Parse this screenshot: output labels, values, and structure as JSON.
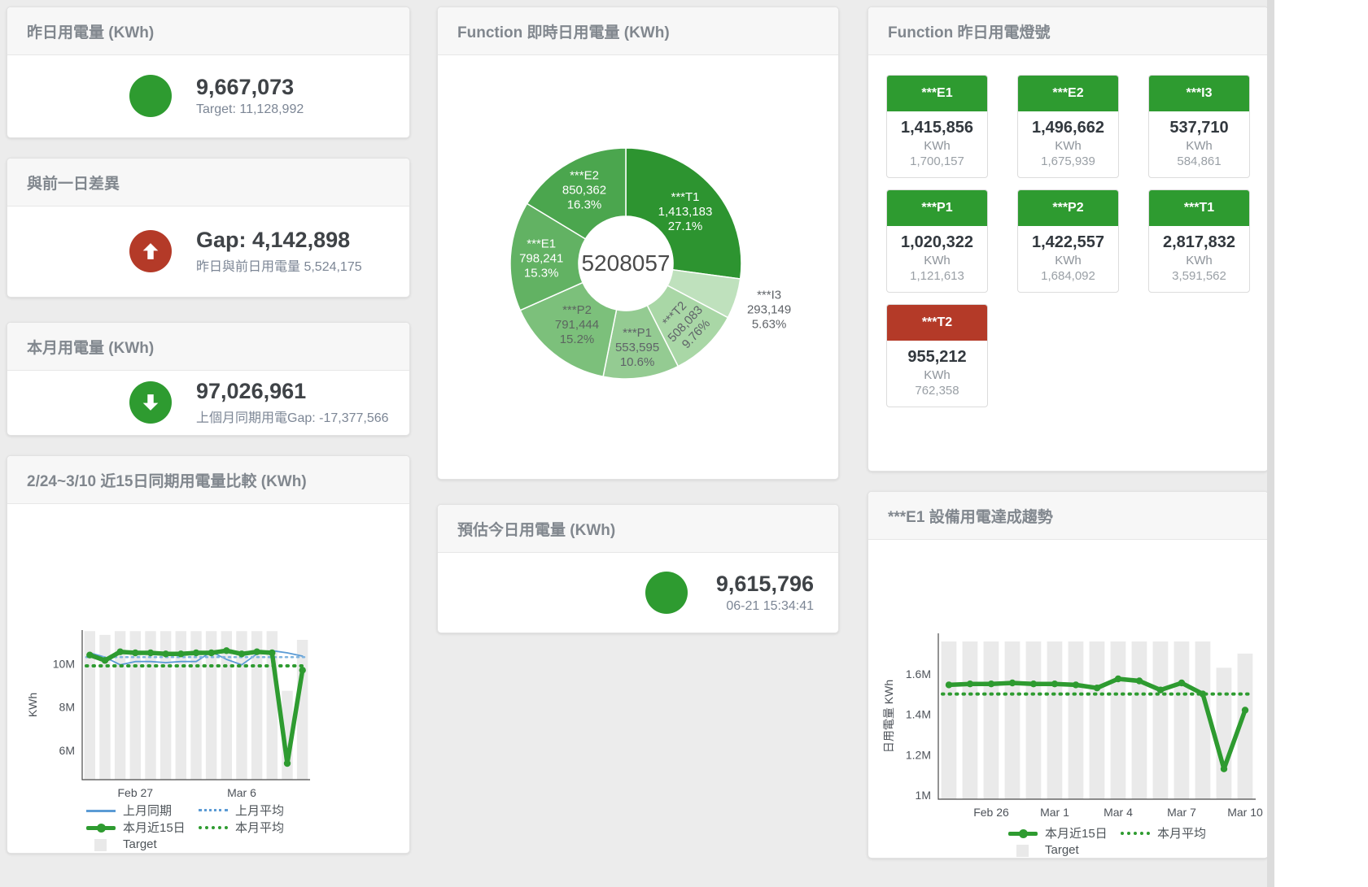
{
  "colors": {
    "green": "#2e9b30",
    "red": "#b43a28",
    "blue": "#5b9bd5",
    "bar_gray": "#eaeaea",
    "title_gray": "#81878e",
    "value_dark": "#3f4347",
    "subtitle_gray": "#7c8695"
  },
  "cards": {
    "yesterday": {
      "title": "昨日用電量 (KWh)",
      "value": "9,667,073",
      "subtitle": "Target: 11,128,992",
      "status": "green"
    },
    "diff": {
      "title": "與前一日差異",
      "value": "Gap: 4,142,898",
      "subtitle": "昨日與前日用電量 5,524,175",
      "status": "red",
      "direction": "up"
    },
    "month": {
      "title": "本月用電量 (KWh)",
      "value": "97,026,961",
      "subtitle": "上個月同期用電Gap: -17,377,566",
      "status": "green",
      "direction": "down"
    },
    "realtime": {
      "title": "Function 即時日用電量 (KWh)"
    },
    "lights": {
      "title": "Function 昨日用電燈號",
      "tiles": [
        {
          "label": "***E1",
          "value": "1,415,856",
          "unit": "KWh",
          "target": "1,700,157",
          "status": "green"
        },
        {
          "label": "***E2",
          "value": "1,496,662",
          "unit": "KWh",
          "target": "1,675,939",
          "status": "green"
        },
        {
          "label": "***I3",
          "value": "537,710",
          "unit": "KWh",
          "target": "584,861",
          "status": "green"
        },
        {
          "label": "***P1",
          "value": "1,020,322",
          "unit": "KWh",
          "target": "1,121,613",
          "status": "green"
        },
        {
          "label": "***P2",
          "value": "1,422,557",
          "unit": "KWh",
          "target": "1,684,092",
          "status": "green"
        },
        {
          "label": "***T1",
          "value": "2,817,832",
          "unit": "KWh",
          "target": "3,591,562",
          "status": "green"
        },
        {
          "label": "***T2",
          "value": "955,212",
          "unit": "KWh",
          "target": "762,358",
          "status": "red"
        }
      ]
    },
    "compare": {
      "title": "2/24~3/10 近15日同期用電量比較 (KWh)"
    },
    "estimate": {
      "title": "預估今日用電量 (KWh)",
      "value": "9,615,796",
      "subtitle": "06-21 15:34:41",
      "status": "green"
    },
    "trend": {
      "title": "***E1 設備用電達成趨勢"
    }
  },
  "chart_data": [
    {
      "id": "realtime_donut",
      "type": "pie",
      "title": "Function 即時日用電量 (KWh)",
      "center_label": "5208057",
      "slices": [
        {
          "name": "***T1",
          "value": 1413183,
          "value_label": "1,413,183",
          "pct": "27.1%",
          "color": "#2d9430",
          "label_color": "#ffffff",
          "label_r": 97,
          "outside": false,
          "rotate": 0
        },
        {
          "name": "***I3",
          "value": 293149,
          "value_label": "293,149",
          "pct": "5.63%",
          "color": "#bfe1bd",
          "label_color": "#5f6368",
          "label_r": 185,
          "outside": true,
          "rotate": 0
        },
        {
          "name": "***T2",
          "value": 508083,
          "value_label": "508,083",
          "pct": "9.76%",
          "color": "#a9d7a6",
          "label_color": "#5f6368",
          "label_r": 104,
          "outside": false,
          "rotate": -47
        },
        {
          "name": "***P1",
          "value": 553595,
          "value_label": "553,595",
          "pct": "10.6%",
          "color": "#94cb92",
          "label_color": "#5f6368",
          "label_r": 104,
          "outside": false,
          "rotate": 0
        },
        {
          "name": "***P2",
          "value": 791444,
          "value_label": "791,444",
          "pct": "15.2%",
          "color": "#7cc07b",
          "label_color": "#5c6660",
          "label_r": 96,
          "outside": false,
          "rotate": 0
        },
        {
          "name": "***E1",
          "value": 798241,
          "value_label": "798,241",
          "pct": "15.3%",
          "color": "#62b263",
          "label_color": "#ffffff",
          "label_r": 104,
          "outside": false,
          "rotate": 0
        },
        {
          "name": "***E2",
          "value": 850362,
          "value_label": "850,362",
          "pct": "16.3%",
          "color": "#4ba64e",
          "label_color": "#ffffff",
          "label_r": 104,
          "outside": false,
          "rotate": 0
        }
      ]
    },
    {
      "id": "compare_chart",
      "type": "bar",
      "subtype": "bar+line",
      "title": "2/24~3/10 近15日同期用電量比較 (KWh)",
      "unit": "million KWh",
      "categories": [
        "2/24",
        "2/25",
        "2/26",
        "2/27",
        "2/28",
        "3/1",
        "3/2",
        "3/3",
        "3/4",
        "3/5",
        "3/6",
        "3/7",
        "3/8",
        "3/9",
        "3/10"
      ],
      "ylabel": "KWh",
      "ylim": [
        4.65,
        11.55
      ],
      "yticks": [
        {
          "v": 6,
          "label": "6M"
        },
        {
          "v": 8,
          "label": "8M"
        },
        {
          "v": 10,
          "label": "10M"
        }
      ],
      "xticks": [
        {
          "i": 3,
          "label": "Feb 27"
        },
        {
          "i": 10,
          "label": "Mar 6"
        }
      ],
      "series": [
        {
          "name": "Target",
          "type": "bar",
          "color": "#eaeaea",
          "values": [
            11.5,
            11.33,
            11.5,
            11.5,
            11.5,
            11.5,
            11.5,
            11.5,
            11.5,
            11.5,
            11.5,
            11.5,
            11.5,
            8.75,
            11.1
          ]
        },
        {
          "name": "上月同期",
          "type": "line",
          "color": "#5b9bd5",
          "width": 1.8,
          "dots": false,
          "values": [
            10.5,
            10.3,
            9.95,
            10.1,
            10.1,
            10.05,
            10.1,
            10.1,
            10.55,
            10.2,
            9.95,
            10.45,
            10.6,
            10.5,
            10.35
          ]
        },
        {
          "name": "上月平均",
          "type": "const",
          "color": "#7fb3de",
          "width": 2.5,
          "dash": "2 5",
          "value": 10.3
        },
        {
          "name": "本月近15日",
          "type": "line",
          "color": "#2e9b30",
          "width": 5.5,
          "dots": true,
          "values": [
            10.4,
            10.15,
            10.55,
            10.5,
            10.5,
            10.45,
            10.45,
            10.5,
            10.5,
            10.6,
            10.45,
            10.55,
            10.5,
            5.4,
            9.7
          ]
        },
        {
          "name": "本月平均",
          "type": "const",
          "color": "#2e9b30",
          "width": 4,
          "dash": "1.5 7",
          "value": 9.9
        }
      ],
      "legend": [
        {
          "label": "上月同期",
          "swatch": "line-blue"
        },
        {
          "label": "上月平均",
          "swatch": "dot-blue"
        },
        {
          "label": "本月近15日",
          "swatch": "line-green"
        },
        {
          "label": "本月平均",
          "swatch": "dot-green"
        },
        {
          "label": "Target",
          "swatch": "sq-gray"
        }
      ]
    },
    {
      "id": "trend_chart",
      "type": "bar",
      "subtype": "bar+line",
      "title": "***E1 設備用電達成趨勢",
      "unit": "million KWh",
      "categories": [
        "2/24",
        "2/25",
        "2/26",
        "2/27",
        "2/28",
        "3/1",
        "3/2",
        "3/3",
        "3/4",
        "3/5",
        "3/6",
        "3/7",
        "3/8",
        "3/9",
        "3/10"
      ],
      "ylabel": "日用電量 KWh",
      "ylim": [
        0.98,
        1.8
      ],
      "yticks": [
        {
          "v": 1,
          "label": "1M"
        },
        {
          "v": 1.2,
          "label": "1.2M"
        },
        {
          "v": 1.4,
          "label": "1.4M"
        },
        {
          "v": 1.6,
          "label": "1.6M"
        }
      ],
      "xticks": [
        {
          "i": 2,
          "label": "Feb 26"
        },
        {
          "i": 5,
          "label": "Mar 1"
        },
        {
          "i": 8,
          "label": "Mar 4"
        },
        {
          "i": 11,
          "label": "Mar 7"
        },
        {
          "i": 14,
          "label": "Mar 10"
        }
      ],
      "series": [
        {
          "name": "Target",
          "type": "bar",
          "color": "#eaeaea",
          "values": [
            1.76,
            1.76,
            1.76,
            1.76,
            1.76,
            1.76,
            1.76,
            1.76,
            1.76,
            1.76,
            1.76,
            1.76,
            1.76,
            1.63,
            1.7
          ]
        },
        {
          "name": "本月近15日",
          "type": "line",
          "color": "#2e9b30",
          "width": 5.5,
          "dots": true,
          "values": [
            1.545,
            1.55,
            1.55,
            1.555,
            1.55,
            1.55,
            1.545,
            1.53,
            1.575,
            1.565,
            1.52,
            1.555,
            1.5,
            1.13,
            1.42
          ]
        },
        {
          "name": "本月平均",
          "type": "const",
          "color": "#2e9b30",
          "width": 4,
          "dash": "1.5 7",
          "value": 1.5
        }
      ],
      "legend": [
        {
          "label": "本月近15日",
          "swatch": "line-green"
        },
        {
          "label": "本月平均",
          "swatch": "dot-green"
        },
        {
          "label": "Target",
          "swatch": "sq-gray"
        }
      ]
    }
  ]
}
